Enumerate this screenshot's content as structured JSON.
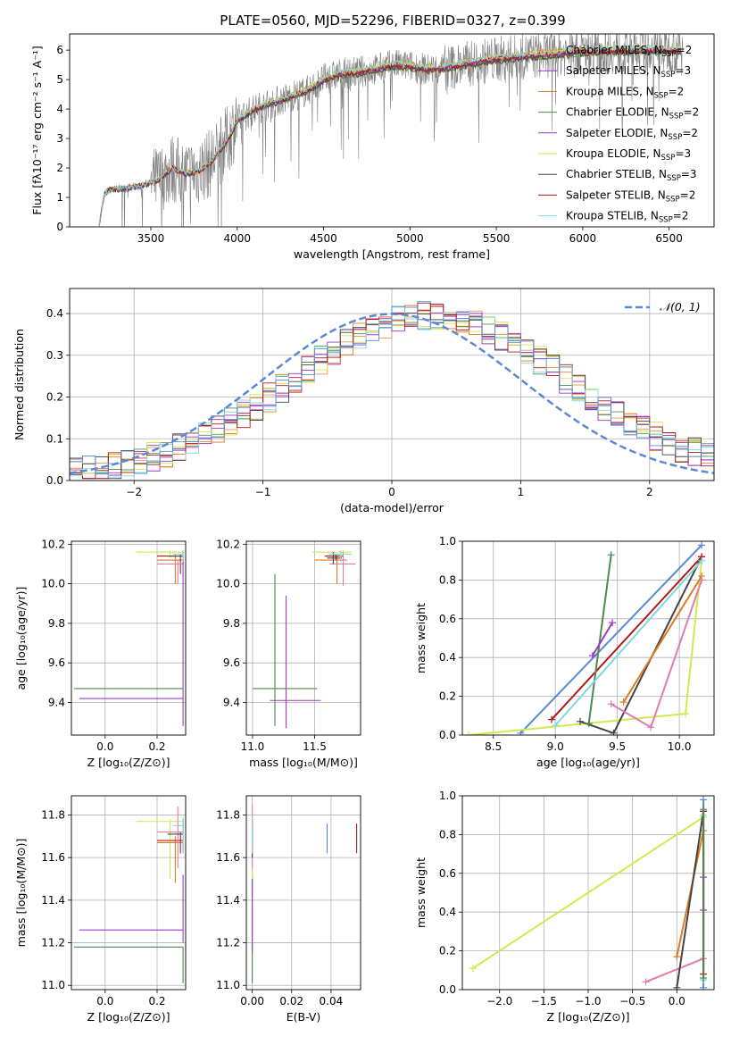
{
  "figure_title": "PLATE=0560, MJD=52296, FIBERID=0327, z=0.399",
  "colors": {
    "chabrier_miles": "#e8964a",
    "salpeter_miles": "#9b30c8",
    "kroupa_miles": "#e07a20",
    "chabrier_elodie": "#4e8a4e",
    "salpeter_elodie": "#9c3cc4",
    "kroupa_elodie": "#d4e84e",
    "chabrier_stelib": "#444444",
    "salpeter_stelib": "#b01818",
    "kroupa_stelib": "#80d8e0",
    "data": "#808080",
    "gauss": "#5b87d6",
    "grid": "#b0b0b0",
    "pink": "#e07ab0",
    "blue": "#5b87d6"
  },
  "legend_top": [
    {
      "label": "Chabrier MILES, N",
      "sub": "SSP",
      "tail": "=2"
    },
    {
      "label": "Salpeter MILES, N",
      "sub": "SSP",
      "tail": "=3"
    },
    {
      "label": "Kroupa MILES, N",
      "sub": "SSP",
      "tail": "=2"
    },
    {
      "label": "Chabrier ELODIE, N",
      "sub": "SSP",
      "tail": "=2"
    },
    {
      "label": "Salpeter ELODIE, N",
      "sub": "SSP",
      "tail": "=2"
    },
    {
      "label": "Kroupa ELODIE, N",
      "sub": "SSP",
      "tail": "=3"
    },
    {
      "label": "Chabrier STELIB, N",
      "sub": "SSP",
      "tail": "=3"
    },
    {
      "label": "Salpeter STELIB, N",
      "sub": "SSP",
      "tail": "=2"
    },
    {
      "label": "Kroupa STELIB, N",
      "sub": "SSP",
      "tail": "=2"
    }
  ],
  "chart_data": [
    {
      "id": "spectrum",
      "type": "line",
      "xlabel": "wavelength [Angstrom, rest frame]",
      "ylabel": "Flux [fλ10⁻¹⁷ erg cm⁻² s⁻¹ A⁻¹]",
      "xlim": [
        3030,
        6760
      ],
      "ylim": [
        0,
        6.55
      ],
      "xticks": [
        3500,
        4000,
        4500,
        5000,
        5500,
        6000,
        6500
      ],
      "yticks": [
        0,
        1,
        2,
        3,
        4,
        5,
        6
      ],
      "model_anchors": {
        "x": [
          3200,
          3230,
          3260,
          3350,
          3450,
          3550,
          3620,
          3700,
          3780,
          3850,
          3950,
          4000,
          4100,
          4200,
          4300,
          4400,
          4500,
          4600,
          4700,
          4800,
          4900,
          5000,
          5100,
          5200,
          5300,
          5400,
          5500,
          5600,
          5700,
          5800,
          5900,
          6000,
          6100,
          6200,
          6300,
          6400,
          6500,
          6570
        ],
        "y": [
          0.0,
          1.1,
          1.25,
          1.3,
          1.4,
          1.6,
          2.0,
          1.8,
          1.9,
          2.2,
          3.0,
          3.6,
          4.0,
          4.2,
          4.4,
          4.6,
          5.0,
          5.2,
          5.25,
          5.35,
          5.5,
          5.45,
          5.35,
          5.4,
          5.5,
          5.6,
          5.7,
          5.75,
          5.8,
          5.85,
          5.9,
          5.95,
          5.97,
          5.98,
          5.99,
          6.0,
          6.0,
          6.0
        ]
      },
      "data_range": [
        3220,
        6580
      ]
    },
    {
      "id": "residuals",
      "type": "histogram",
      "xlabel": "(data-model)/error",
      "ylabel": "Normed distribution",
      "xlim": [
        -2.5,
        2.5
      ],
      "ylim": [
        0,
        0.46
      ],
      "xticks": [
        -2,
        -1,
        0,
        1,
        2
      ],
      "yticks": [
        0.0,
        0.1,
        0.2,
        0.3,
        0.4
      ],
      "legend": "𝒩(0, 1)",
      "bin_width": 0.1,
      "bin_start": -2.5
    },
    {
      "id": "age_vs_Z",
      "type": "errorbar",
      "xlabel": "Z [log₁₀(Z/Z⊙)]",
      "ylabel": "age  [log₁₀(age/yr)]",
      "xlim": [
        -0.13,
        0.31
      ],
      "ylim": [
        9.235,
        10.215
      ],
      "xticks": [
        0.0,
        0.2
      ],
      "yticks": [
        9.4,
        9.6,
        9.8,
        10.0,
        10.2
      ],
      "points": [
        {
          "c": "chabrier_elodie",
          "x": 0.29,
          "xe": [
            0.29,
            0.3
          ],
          "y": 9.47,
          "ye": [
            9.45,
            9.48
          ],
          "hx": [
            -0.12,
            0.3
          ]
        },
        {
          "c": "salpeter_elodie",
          "x": 0.3,
          "y": 9.42,
          "hx": [
            -0.1,
            0.3
          ],
          "vy": [
            9.28,
            10.12
          ]
        },
        {
          "c": "kroupa_elodie",
          "x": 0.25,
          "y": 10.16,
          "hx": [
            0.12,
            0.3
          ],
          "vy": [
            10.13,
            10.17
          ]
        },
        {
          "c": "kroupa_miles",
          "x": 0.27,
          "y": 10.12,
          "hx": [
            0.2,
            0.3
          ],
          "vy": [
            10.0,
            10.15
          ]
        },
        {
          "c": "salpeter_stelib",
          "x": 0.29,
          "y": 10.14,
          "hx": [
            0.2,
            0.3
          ],
          "vy": [
            10.05,
            10.15
          ]
        },
        {
          "c": "pink",
          "x": 0.28,
          "y": 10.1,
          "hx": [
            0.2,
            0.3
          ],
          "vy": [
            10.0,
            10.12
          ]
        },
        {
          "c": "chabrier_stelib",
          "x": 0.3,
          "y": 10.14,
          "hx": [
            0.24,
            0.3
          ],
          "vy": [
            10.1,
            10.16
          ]
        },
        {
          "c": "kroupa_stelib",
          "x": 0.3,
          "y": 10.15,
          "hx": [
            0.26,
            0.3
          ],
          "vy": [
            10.11,
            10.17
          ]
        }
      ]
    },
    {
      "id": "age_vs_mass",
      "type": "errorbar",
      "xlabel": "mass [log₁₀(M/M⊙)]",
      "ylabel": "",
      "xlim": [
        10.95,
        11.87
      ],
      "ylim": [
        9.235,
        10.215
      ],
      "xticks": [
        11.0,
        11.5
      ],
      "yticks": [
        9.4,
        9.6,
        9.8,
        10.0,
        10.2
      ],
      "points": [
        {
          "c": "chabrier_elodie",
          "x": 11.18,
          "y": 9.47,
          "hx": [
            11.0,
            11.52
          ],
          "vy": [
            9.28,
            10.05
          ]
        },
        {
          "c": "salpeter_elodie",
          "x": 11.27,
          "y": 9.41,
          "hx": [
            11.14,
            11.55
          ],
          "vy": [
            9.27,
            9.94
          ]
        },
        {
          "c": "kroupa_elodie",
          "x": 11.73,
          "y": 10.16,
          "hx": [
            11.48,
            11.8
          ],
          "vy": [
            10.13,
            10.17
          ]
        },
        {
          "c": "kroupa_miles",
          "x": 11.68,
          "y": 10.12,
          "hx": [
            11.5,
            11.76
          ],
          "vy": [
            10.0,
            10.14
          ]
        },
        {
          "c": "salpeter_stelib",
          "x": 11.67,
          "y": 10.14,
          "hx": [
            11.58,
            11.73
          ],
          "vy": [
            10.12,
            10.15
          ]
        },
        {
          "c": "pink",
          "x": 11.73,
          "y": 10.1,
          "hx": [
            11.62,
            11.83
          ],
          "vy": [
            9.99,
            10.16
          ]
        },
        {
          "c": "chabrier_stelib",
          "x": 11.65,
          "y": 10.13,
          "hx": [
            11.6,
            11.72
          ],
          "vy": [
            10.1,
            10.16
          ]
        },
        {
          "c": "kroupa_stelib",
          "x": 11.71,
          "y": 10.15,
          "hx": [
            11.62,
            11.8
          ],
          "vy": [
            10.11,
            10.17
          ]
        }
      ]
    },
    {
      "id": "weight_vs_age",
      "type": "line",
      "xlabel": "age  [log₁₀(age/yr)]",
      "ylabel": "mass weight",
      "xlim": [
        8.25,
        10.28
      ],
      "ylim": [
        0,
        1.0
      ],
      "xticks": [
        8.5,
        9.0,
        9.5,
        10.0
      ],
      "yticks": [
        0.0,
        0.2,
        0.4,
        0.6,
        0.8,
        1.0
      ],
      "series": [
        {
          "c": "blue",
          "x": [
            8.72,
            10.18
          ],
          "y": [
            0.01,
            0.98
          ]
        },
        {
          "c": "kroupa_elodie",
          "x": [
            8.3,
            10.05,
            10.18
          ],
          "y": [
            0.0,
            0.11,
            0.9
          ]
        },
        {
          "c": "chabrier_stelib",
          "x": [
            9.2,
            9.47,
            10.18
          ],
          "y": [
            0.07,
            0.01,
            0.92
          ]
        },
        {
          "c": "salpeter_stelib",
          "x": [
            8.97,
            10.18
          ],
          "y": [
            0.08,
            0.92
          ]
        },
        {
          "c": "chabrier_elodie",
          "x": [
            9.27,
            9.45
          ],
          "y": [
            0.06,
            0.93
          ]
        },
        {
          "c": "kroupa_miles",
          "x": [
            9.55,
            10.18
          ],
          "y": [
            0.17,
            0.82
          ]
        },
        {
          "c": "pink",
          "x": [
            9.45,
            9.77,
            10.18
          ],
          "y": [
            0.16,
            0.04,
            0.8
          ]
        },
        {
          "c": "salpeter_elodie",
          "x": [
            9.3,
            9.46
          ],
          "y": [
            0.41,
            0.58
          ]
        },
        {
          "c": "kroupa_stelib",
          "x": [
            9.0,
            10.18
          ],
          "y": [
            0.05,
            0.9
          ]
        }
      ]
    },
    {
      "id": "mass_vs_Z",
      "type": "errorbar",
      "xlabel": "Z [log₁₀(Z/Z⊙)]",
      "ylabel": "mass [log₁₀(M/M⊙)]",
      "xlim": [
        -0.13,
        0.31
      ],
      "ylim": [
        10.98,
        11.89
      ],
      "xticks": [
        0.0,
        0.2
      ],
      "yticks": [
        11.0,
        11.2,
        11.4,
        11.6,
        11.8
      ],
      "points": [
        {
          "c": "chabrier_elodie",
          "x": 0.3,
          "y": 11.18,
          "hx": [
            -0.12,
            0.3
          ],
          "vy": [
            11.01,
            11.18
          ]
        },
        {
          "c": "salpeter_elodie",
          "x": 0.3,
          "y": 11.26,
          "hx": [
            -0.1,
            0.3
          ],
          "vy": [
            11.2,
            11.52
          ]
        },
        {
          "c": "kroupa_elodie",
          "x": 0.25,
          "y": 11.77,
          "hx": [
            0.12,
            0.3
          ],
          "vy": [
            11.5,
            11.78
          ]
        },
        {
          "c": "kroupa_miles",
          "x": 0.27,
          "y": 11.67,
          "hx": [
            0.2,
            0.3
          ],
          "vy": [
            11.48,
            11.7
          ]
        },
        {
          "c": "salpeter_stelib",
          "x": 0.29,
          "y": 11.68,
          "hx": [
            0.2,
            0.3
          ],
          "vy": [
            11.62,
            11.72
          ]
        },
        {
          "c": "pink",
          "x": 0.28,
          "y": 11.72,
          "hx": [
            0.2,
            0.3
          ],
          "vy": [
            11.55,
            11.84
          ]
        },
        {
          "c": "chabrier_stelib",
          "x": 0.3,
          "y": 11.71,
          "hx": [
            0.24,
            0.3
          ],
          "vy": [
            11.62,
            11.78
          ]
        },
        {
          "c": "kroupa_stelib",
          "x": 0.3,
          "y": 11.75,
          "hx": [
            0.26,
            0.3
          ],
          "vy": [
            11.62,
            11.79
          ]
        }
      ]
    },
    {
      "id": "mass_vs_ebv",
      "type": "errorbar",
      "xlabel": "E(B-V)",
      "ylabel": "",
      "xlim": [
        -0.003,
        0.055
      ],
      "ylim": [
        10.98,
        11.89
      ],
      "xticks": [
        0.0,
        0.02,
        0.04
      ],
      "yticks": [
        11.0,
        11.2,
        11.4,
        11.6,
        11.8
      ],
      "points": [
        {
          "c": "blue",
          "x": 0.038,
          "y": 11.69,
          "vy": [
            11.62,
            11.76
          ]
        },
        {
          "c": "salpeter_stelib",
          "x": 0.053,
          "y": 11.69,
          "vy": [
            11.62,
            11.76
          ]
        },
        {
          "c": "chabrier_elodie",
          "x": 0.0,
          "y": 11.18,
          "vy": [
            11.01,
            11.55
          ]
        },
        {
          "c": "salpeter_elodie",
          "x": 0.0,
          "y": 11.26,
          "vy": [
            11.15,
            11.52
          ]
        },
        {
          "c": "kroupa_elodie",
          "x": 0.0,
          "y": 11.77,
          "vy": [
            11.5,
            11.8
          ]
        },
        {
          "c": "pink",
          "x": 0.0,
          "y": 11.72,
          "vy": [
            11.55,
            11.85
          ]
        },
        {
          "c": "chabrier_stelib",
          "x": 0.0,
          "y": 11.71,
          "vy": [
            11.6,
            11.78
          ]
        },
        {
          "c": "kroupa_stelib",
          "x": 0.0,
          "y": 11.75,
          "vy": [
            11.62,
            11.79
          ]
        }
      ]
    },
    {
      "id": "weight_vs_Z",
      "type": "line",
      "xlabel": "Z [log₁₀(Z/Z⊙)]",
      "ylabel": "mass weight",
      "xlim": [
        -2.42,
        0.42
      ],
      "ylim": [
        0,
        1.0
      ],
      "xticks": [
        -2.0,
        -1.5,
        -1.0,
        -0.5,
        0.0
      ],
      "yticks": [
        0.0,
        0.2,
        0.4,
        0.6,
        0.8,
        1.0
      ],
      "series": [
        {
          "c": "kroupa_elodie",
          "x": [
            -2.3,
            0.3
          ],
          "y": [
            0.11,
            0.89
          ]
        },
        {
          "c": "pink",
          "x": [
            -0.35,
            0.3
          ],
          "y": [
            0.04,
            0.16
          ]
        },
        {
          "c": "kroupa_miles",
          "x": [
            0.0,
            0.3
          ],
          "y": [
            0.17,
            0.82
          ]
        },
        {
          "c": "chabrier_stelib",
          "x": [
            0.0,
            0.3
          ],
          "y": [
            0.01,
            0.92
          ]
        },
        {
          "c": "blue",
          "x": [
            0.3,
            0.3
          ],
          "y": [
            0.01,
            0.98
          ]
        },
        {
          "c": "kroupa_stelib",
          "x": [
            0.3,
            0.3
          ],
          "y": [
            0.05,
            0.9
          ]
        },
        {
          "c": "salpeter_elodie",
          "x": [
            0.3,
            0.3
          ],
          "y": [
            0.41,
            0.58
          ]
        },
        {
          "c": "salpeter_stelib",
          "x": [
            0.3,
            0.3
          ],
          "y": [
            0.08,
            0.92
          ]
        },
        {
          "c": "chabrier_elodie",
          "x": [
            0.3,
            0.3
          ],
          "y": [
            0.06,
            0.93
          ]
        }
      ]
    }
  ]
}
